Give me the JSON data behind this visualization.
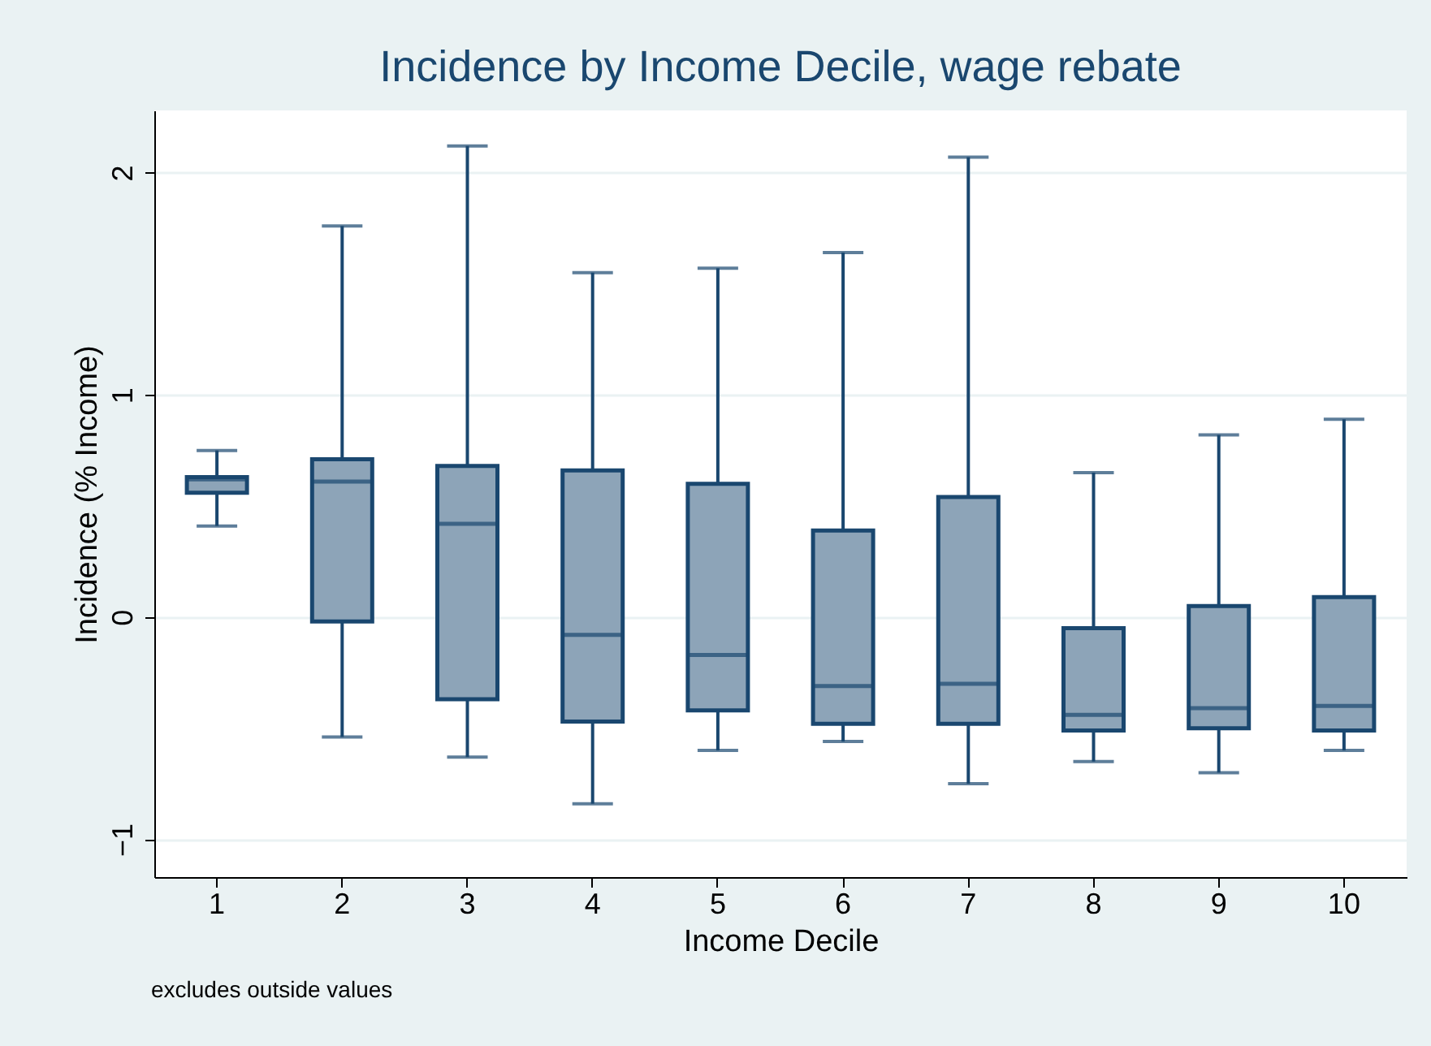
{
  "chart_data": {
    "type": "box",
    "title": "Incidence by Income Decile, wage rebate",
    "xlabel": "Income Decile",
    "ylabel": "Incidence (% Income)",
    "annotations": [
      "excludes outside values"
    ],
    "categories": [
      "1",
      "2",
      "3",
      "4",
      "5",
      "6",
      "7",
      "8",
      "9",
      "10"
    ],
    "ylim": [
      -1.17,
      2.28
    ],
    "yticks": [
      {
        "value": -1,
        "label": "−1"
      },
      0,
      1,
      2
    ],
    "grid": "y",
    "series": [
      {
        "color": "#8da4b8",
        "boxes": [
          {
            "low": 0.41,
            "q1": 0.56,
            "median": 0.62,
            "q3": 0.63,
            "high": 0.75
          },
          {
            "low": -0.54,
            "q1": -0.02,
            "median": 0.61,
            "q3": 0.71,
            "high": 1.76
          },
          {
            "low": -0.63,
            "q1": -0.37,
            "median": 0.42,
            "q3": 0.68,
            "high": 2.12
          },
          {
            "low": -0.84,
            "q1": -0.47,
            "median": -0.08,
            "q3": 0.66,
            "high": 1.55
          },
          {
            "low": -0.6,
            "q1": -0.42,
            "median": -0.17,
            "q3": 0.6,
            "high": 1.57
          },
          {
            "low": -0.56,
            "q1": -0.48,
            "median": -0.31,
            "q3": 0.39,
            "high": 1.64
          },
          {
            "low": -0.75,
            "q1": -0.48,
            "median": -0.3,
            "q3": 0.54,
            "high": 2.07
          },
          {
            "low": -0.65,
            "q1": -0.51,
            "median": -0.44,
            "q3": -0.05,
            "high": 0.65
          },
          {
            "low": -0.7,
            "q1": -0.5,
            "median": -0.41,
            "q3": 0.05,
            "high": 0.82
          },
          {
            "low": -0.6,
            "q1": -0.51,
            "median": -0.4,
            "q3": 0.09,
            "high": 0.89
          }
        ]
      }
    ]
  }
}
